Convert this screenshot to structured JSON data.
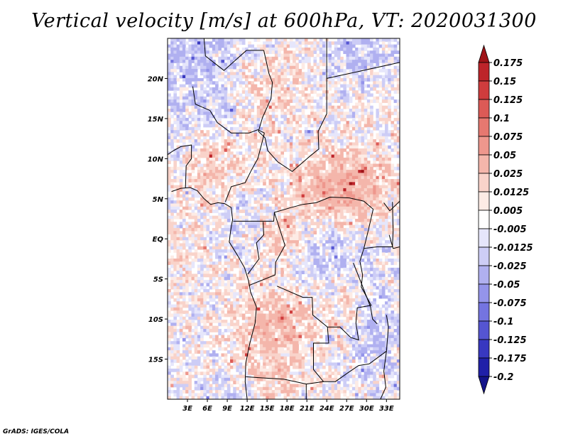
{
  "chart_data": {
    "type": "heatmap",
    "title": "Vertical velocity [m/s] at 600hPa, VT: 2020031300",
    "variable": "Vertical velocity",
    "units": "m/s",
    "level": "600hPa",
    "valid_time": "2020031300",
    "x_ticks": [
      "3E",
      "6E",
      "9E",
      "12E",
      "15E",
      "18E",
      "21E",
      "24E",
      "27E",
      "30E",
      "33E"
    ],
    "x_tick_values": [
      3,
      6,
      9,
      12,
      15,
      18,
      21,
      24,
      27,
      30,
      33
    ],
    "y_ticks": [
      "20N",
      "15N",
      "10N",
      "5N",
      "EQ",
      "5S",
      "10S",
      "15S"
    ],
    "y_tick_values": [
      20,
      15,
      10,
      5,
      0,
      -5,
      -10,
      -15
    ],
    "x_range": [
      0,
      35
    ],
    "y_range": [
      -20,
      25
    ],
    "colorbar": {
      "levels": [
        "0.175",
        "0.15",
        "0.125",
        "0.1",
        "0.075",
        "0.05",
        "0.025",
        "0.0125",
        "0.005",
        "-0.005",
        "-0.0125",
        "-0.025",
        "-0.05",
        "-0.075",
        "-0.1",
        "-0.125",
        "-0.175",
        "-0.2"
      ],
      "colors": [
        "#a01418",
        "#bd242a",
        "#cf3c3d",
        "#dc5a56",
        "#e67870",
        "#ee978d",
        "#f4b6ab",
        "#f9d3ca",
        "#fdebe5",
        "#ffffff",
        "#e6e6fb",
        "#cdcdf6",
        "#b0b0f0",
        "#9494ea",
        "#7474e0",
        "#5555d2",
        "#3838c0",
        "#2020a8",
        "#14148a"
      ]
    }
  },
  "footer": "GrADS: IGES/COLA"
}
